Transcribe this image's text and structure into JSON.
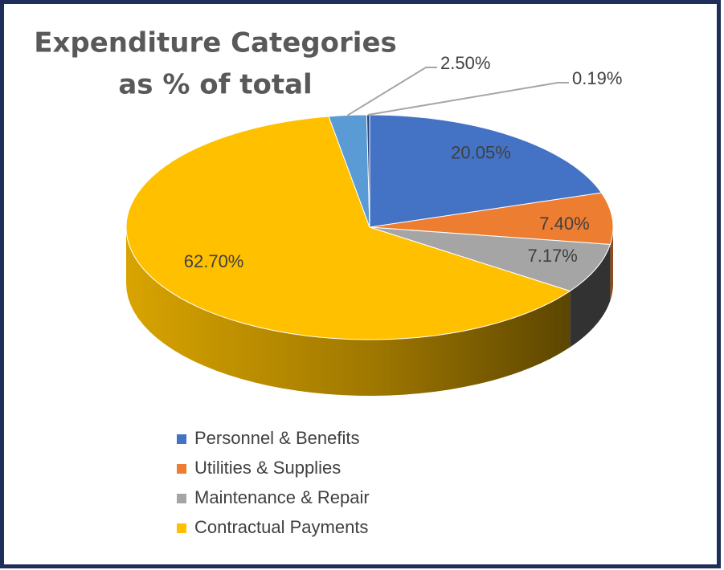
{
  "chart_data": {
    "type": "pie3d",
    "title_lines": [
      "Expenditure Categories",
      "as % of total"
    ],
    "categories": [
      "Personnel & Benefits",
      "Utilities & Supplies",
      "Maintenance & Repair",
      "Contractual Payments",
      null,
      null
    ],
    "values": [
      20.05,
      7.4,
      7.17,
      62.7,
      2.5,
      0.19
    ],
    "value_labels": [
      "20.05%",
      "7.40%",
      "7.17%",
      "62.70%",
      "2.50%",
      "0.19%"
    ],
    "colors": [
      "#4472c4",
      "#ed7d31",
      "#a5a5a5",
      "#ffc000",
      "#5b9bd5",
      "#264478"
    ],
    "legend": "bottom"
  }
}
